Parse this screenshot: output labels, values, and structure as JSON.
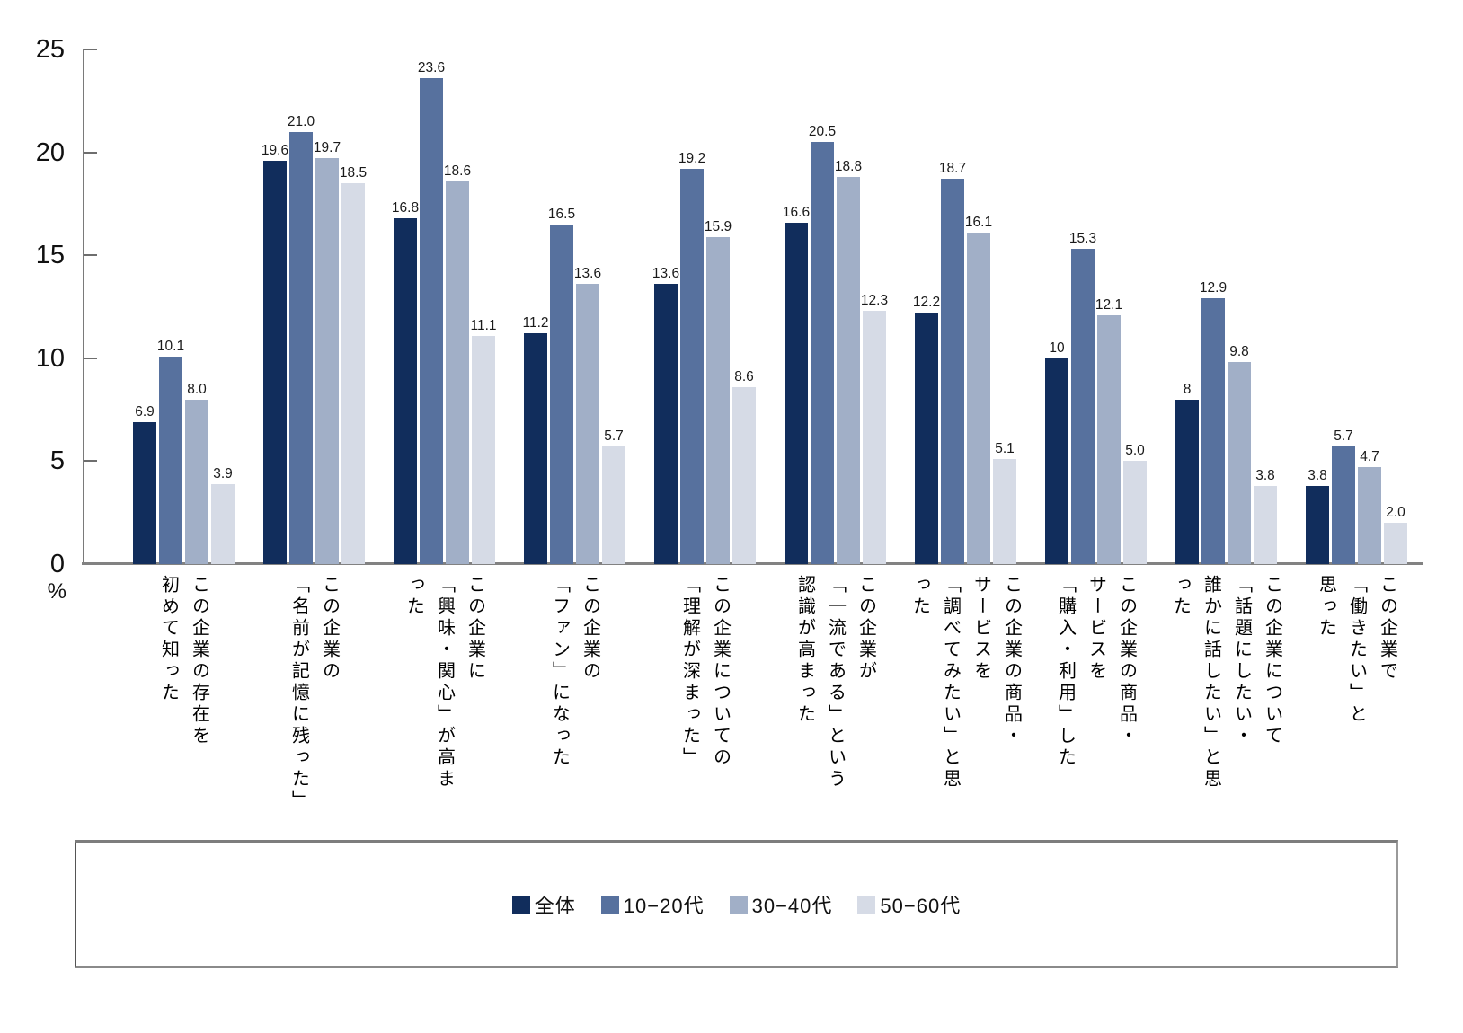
{
  "chart_data": {
    "type": "bar",
    "title": "",
    "xlabel": "",
    "ylabel": "%",
    "ylim": [
      0,
      25
    ],
    "yticks": [
      0,
      5,
      10,
      15,
      20,
      25
    ],
    "grid": false,
    "legend_position": "bottom-boxed",
    "categories": [
      "この企業の存在を\n初めて知った",
      "この企業の\n「名前が記憶に残った」",
      "この企業に\n「興味・関心」が高まった",
      "この企業の\n「ファン」になった",
      "この企業についての\n「理解が深まった」",
      "この企業が\n「一流である」という\n認識が高まった",
      "この企業の商品・\nサービスを\n「調べてみたい」と思った",
      "この企業の商品・\nサービスを\n「購入・利用」した",
      "この企業について\n「話題にしたい・\n誰かに話したい」と思った",
      "この企業で\n「働きたい」と\n思った"
    ],
    "series": [
      {
        "name": "全体",
        "color": "#112d5c",
        "values": [
          6.9,
          19.6,
          16.8,
          11.2,
          13.6,
          16.6,
          12.2,
          10,
          8,
          3.8
        ],
        "labels": [
          "6.9",
          "19.6",
          "16.8",
          "11.2",
          "13.6",
          "16.6",
          "12.2",
          "10",
          "8",
          "3.8"
        ]
      },
      {
        "name": "10−20代",
        "color": "#57719e",
        "values": [
          10.1,
          21.0,
          23.6,
          16.5,
          19.2,
          20.5,
          18.7,
          15.3,
          12.9,
          5.7
        ],
        "labels": [
          "10.1",
          "21.0",
          "23.6",
          "16.5",
          "19.2",
          "20.5",
          "18.7",
          "15.3",
          "12.9",
          "5.7"
        ]
      },
      {
        "name": "30−40代",
        "color": "#a1afc7",
        "values": [
          8.0,
          19.7,
          18.6,
          13.6,
          15.9,
          18.8,
          16.1,
          12.1,
          9.8,
          4.7
        ],
        "labels": [
          "8.0",
          "19.7",
          "18.6",
          "13.6",
          "15.9",
          "18.8",
          "16.1",
          "12.1",
          "9.8",
          "4.7"
        ]
      },
      {
        "name": "50−60代",
        "color": "#d6dbe6",
        "values": [
          3.9,
          18.5,
          11.1,
          5.7,
          8.6,
          12.3,
          5.1,
          5.0,
          3.8,
          2.0
        ],
        "labels": [
          "3.9",
          "18.5",
          "11.1",
          "5.7",
          "8.6",
          "12.3",
          "5.1",
          "5.0",
          "3.8",
          "2.0"
        ]
      }
    ]
  }
}
